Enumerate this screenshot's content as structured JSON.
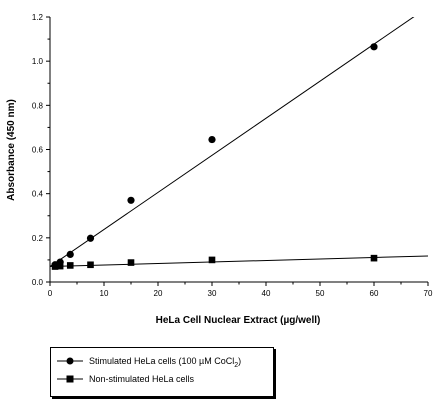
{
  "chart_data": {
    "type": "scatter",
    "xlabel": "HeLa Cell Nuclear Extract (µg/well)",
    "ylabel": "Absorbance (450 nm)",
    "xlim": [
      0,
      70
    ],
    "ylim": [
      0,
      1.2
    ],
    "xticks": [
      "0",
      "10",
      "20",
      "30",
      "40",
      "50",
      "60",
      "70"
    ],
    "yticks": [
      "0.0",
      "0.2",
      "0.4",
      "0.6",
      "0.8",
      "1.0",
      "1.2"
    ],
    "grid": false,
    "legend_placement": "below",
    "series": [
      {
        "name": "Stimulated HeLa cells (100 µM CoCl2)",
        "label_main": "Stimulated HeLa cells (100 µM CoCl",
        "label_sub": "2",
        "label_end": ")",
        "marker": "circle",
        "x": [
          0.94,
          1.88,
          3.75,
          7.5,
          15,
          30,
          60
        ],
        "y": [
          0.078,
          0.09,
          0.125,
          0.198,
          0.37,
          0.645,
          1.065
        ],
        "fit": {
          "x": [
            0,
            70
          ],
          "y": [
            0.07,
            1.245
          ]
        }
      },
      {
        "name": "Non-stimulated HeLa cells",
        "label_main": "Non-stimulated HeLa cells",
        "marker": "square",
        "x": [
          0.94,
          1.88,
          3.75,
          7.5,
          15,
          30,
          60
        ],
        "y": [
          0.07,
          0.072,
          0.075,
          0.078,
          0.088,
          0.1,
          0.108
        ],
        "fit": {
          "x": [
            0,
            70
          ],
          "y": [
            0.07,
            0.118
          ]
        }
      }
    ]
  }
}
